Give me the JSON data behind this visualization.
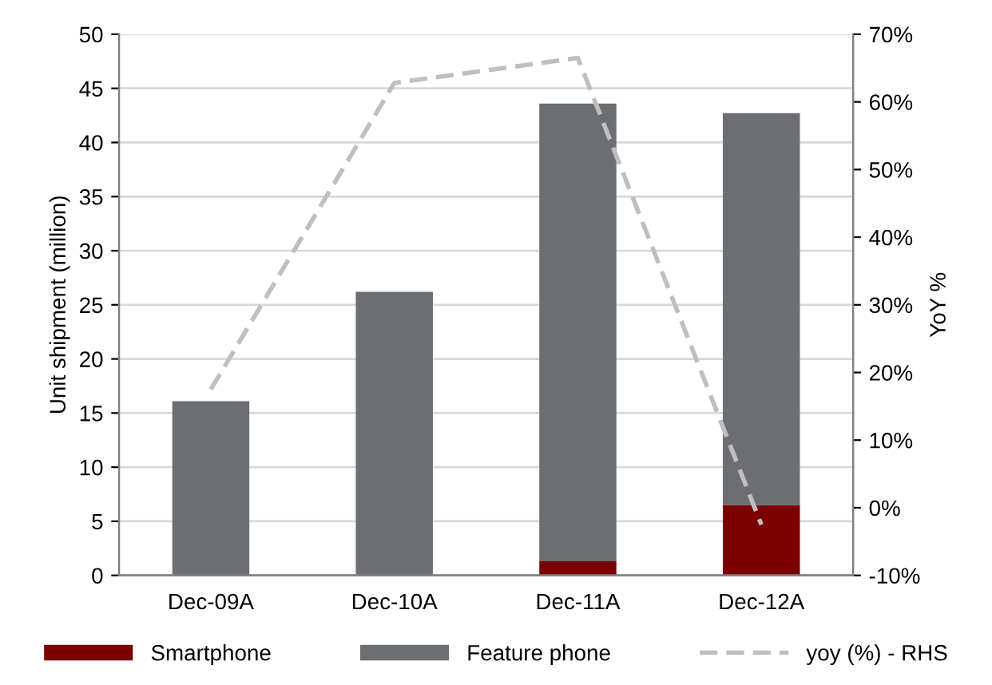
{
  "chart_data": {
    "type": "bar",
    "stacked": true,
    "ylabel": "Unit shipment (million)",
    "y2label": "YoY %",
    "categories": [
      "Dec-09A",
      "Dec-10A",
      "Dec-11A",
      "Dec-12A"
    ],
    "series": [
      {
        "name": "Smartphone",
        "color": "#7b0000",
        "values": [
          0,
          0,
          1.3,
          6.5
        ]
      },
      {
        "name": "Feature phone",
        "color": "#6d6e71",
        "values": [
          16.1,
          26.2,
          42.3,
          36.2
        ]
      },
      {
        "name": "yoy (%) - RHS",
        "type": "line",
        "axis": "y2",
        "color": "#bfbfbf",
        "line_style": "dashed",
        "marker": "none",
        "values": [
          17.5,
          62.8,
          66.5,
          -2.5
        ]
      }
    ],
    "ylim": [
      0,
      50
    ],
    "yticks": [
      0,
      5,
      10,
      15,
      20,
      25,
      30,
      35,
      40,
      45,
      50
    ],
    "y2lim": [
      -10,
      70
    ],
    "y2ticks": [
      {
        "value": -10,
        "label": "-10%"
      },
      {
        "value": 0,
        "label": "0%"
      },
      {
        "value": 10,
        "label": "10%"
      },
      {
        "value": 20,
        "label": "20%"
      },
      {
        "value": 30,
        "label": "30%"
      },
      {
        "value": 40,
        "label": "40%"
      },
      {
        "value": 50,
        "label": "50%"
      },
      {
        "value": 60,
        "label": "60%"
      },
      {
        "value": 70,
        "label": "70%"
      }
    ],
    "grid": "y",
    "legend": "bottom"
  }
}
